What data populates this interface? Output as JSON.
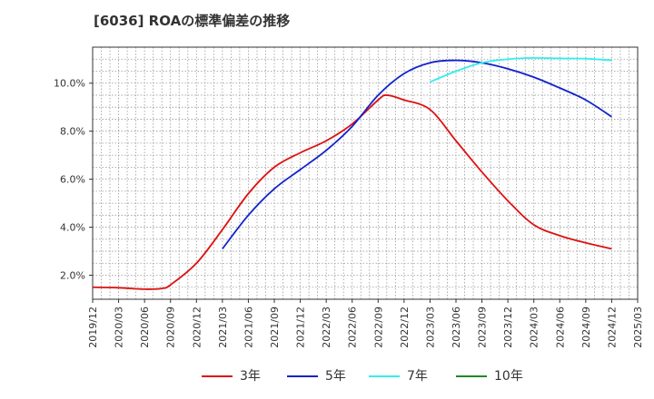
{
  "chart_data": {
    "type": "line",
    "title": "[6036]  ROAの標準偏差の推移",
    "xlabel": "",
    "ylabel": "",
    "ylim": [
      1.0,
      11.5
    ],
    "yticks": [
      "2.0%",
      "4.0%",
      "6.0%",
      "8.0%",
      "10.0%"
    ],
    "xticks": [
      "2019/12",
      "2020/03",
      "2020/06",
      "2020/09",
      "2020/12",
      "2021/03",
      "2021/06",
      "2021/09",
      "2021/12",
      "2022/03",
      "2022/06",
      "2022/09",
      "2022/12",
      "2023/03",
      "2023/06",
      "2023/09",
      "2023/12",
      "2024/03",
      "2024/06",
      "2024/09",
      "2024/12",
      "2025/03"
    ],
    "grid": true,
    "legend_position": "bottom",
    "series": [
      {
        "name": "3年",
        "color": "#dd1111",
        "x": [
          "2019/12",
          "2020/03",
          "2020/06",
          "2020/08",
          "2020/09",
          "2020/12",
          "2021/03",
          "2021/06",
          "2021/09",
          "2021/12",
          "2022/03",
          "2022/06",
          "2022/09",
          "2022/10",
          "2022/12",
          "2023/03",
          "2023/06",
          "2023/09",
          "2023/12",
          "2024/03",
          "2024/06",
          "2024/09",
          "2024/12"
        ],
        "values": [
          1.5,
          1.48,
          1.42,
          1.45,
          1.6,
          2.5,
          3.9,
          5.4,
          6.5,
          7.1,
          7.6,
          8.3,
          9.3,
          9.5,
          9.3,
          8.9,
          7.6,
          6.3,
          5.1,
          4.1,
          3.65,
          3.35,
          3.1
        ]
      },
      {
        "name": "5年",
        "color": "#1122cc",
        "x": [
          "2021/03",
          "2021/06",
          "2021/09",
          "2021/12",
          "2022/03",
          "2022/06",
          "2022/09",
          "2022/12",
          "2023/03",
          "2023/06",
          "2023/09",
          "2023/12",
          "2024/03",
          "2024/06",
          "2024/09",
          "2024/12"
        ],
        "values": [
          3.1,
          4.5,
          5.6,
          6.4,
          7.2,
          8.2,
          9.5,
          10.4,
          10.85,
          10.95,
          10.85,
          10.6,
          10.25,
          9.8,
          9.3,
          8.6
        ]
      },
      {
        "name": "7年",
        "color": "#33eeee",
        "x": [
          "2023/03",
          "2023/06",
          "2023/09",
          "2023/12",
          "2024/03",
          "2024/06",
          "2024/09",
          "2024/12"
        ],
        "values": [
          10.05,
          10.5,
          10.85,
          11.0,
          11.05,
          11.03,
          11.02,
          10.95
        ]
      },
      {
        "name": "10年",
        "color": "#228822",
        "x": [],
        "values": []
      }
    ]
  }
}
